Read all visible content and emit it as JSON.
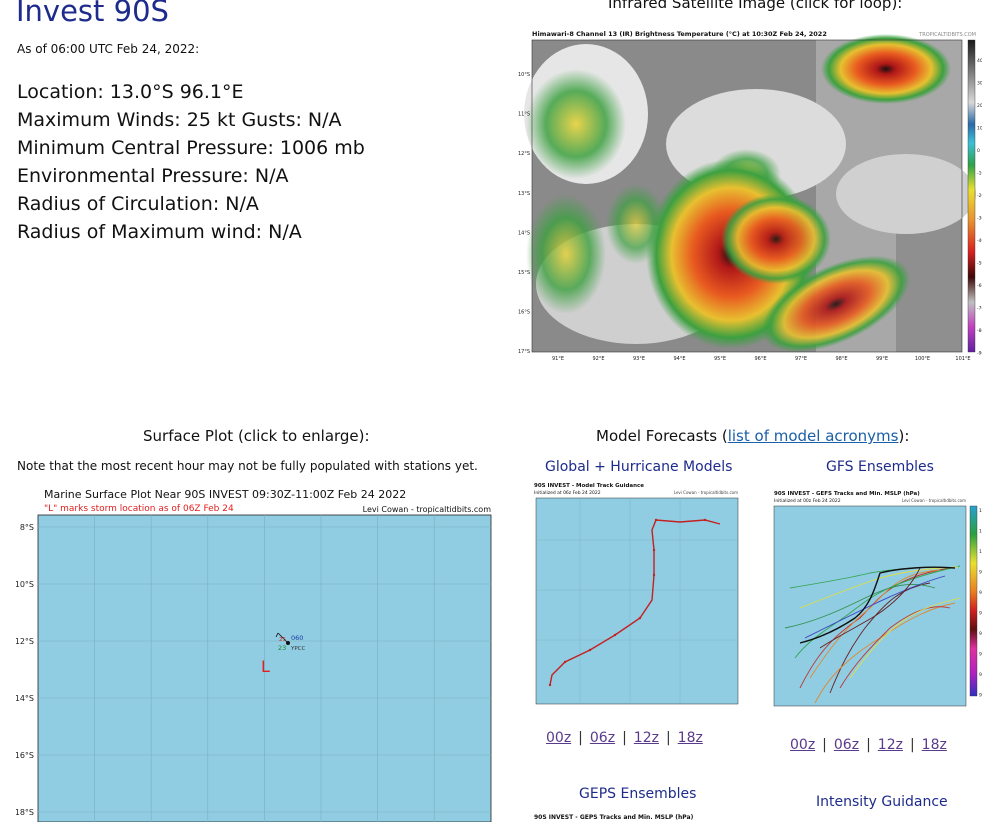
{
  "header": {
    "title": "Invest 90S",
    "as_of": "As of 06:00 UTC Feb 24, 2022:"
  },
  "stats": {
    "location": "Location: 13.0°S 96.1°E",
    "max_winds": "Maximum Winds: 25 kt  Gusts: N/A",
    "min_pressure": "Minimum Central Pressure: 1006 mb",
    "env_pressure": "Environmental Pressure: N/A",
    "radius_circ": "Radius of Circulation: N/A",
    "radius_max_wind": "Radius of Maximum wind: N/A"
  },
  "ir": {
    "section_title": "Infrared Satellite Image (click for loop):",
    "image_title": "Himawari-8 Channel 13 (IR) Brightness Temperature (°C) at 10:30Z Feb 24, 2022",
    "credit": "TROPICALTIDBITS.COM",
    "lat_labels": [
      "10°S",
      "11°S",
      "12°S",
      "13°S",
      "14°S",
      "15°S",
      "16°S",
      "17°S"
    ],
    "lon_labels": [
      "91°E",
      "92°E",
      "93°E",
      "94°E",
      "95°E",
      "96°E",
      "97°E",
      "98°E",
      "99°E",
      "100°E",
      "101°E"
    ],
    "scale_labels": [
      "40",
      "30",
      "20",
      "10",
      "0",
      "-10",
      "-20",
      "-30",
      "-40",
      "-50",
      "-60",
      "-70",
      "-80",
      "-90"
    ]
  },
  "surface": {
    "section_title": "Surface Plot (click to enlarge):",
    "note": "Note that the most recent hour may not be fully populated with stations yet.",
    "plot_title": "Marine Surface Plot Near 90S INVEST 09:30Z-11:00Z Feb 24 2022",
    "storm_note": "\"L\" marks storm location as of 06Z Feb 24",
    "credit": "Levi Cowan - tropicaltidbits.com",
    "lat_labels": [
      "8°S",
      "10°S",
      "12°S",
      "14°S",
      "16°S",
      "18°S"
    ],
    "station": {
      "pressure": "060",
      "temp": "23",
      "id": "YPCC",
      "dew": "25"
    },
    "storm_marker": "L"
  },
  "models": {
    "section_prefix": "Model Forecasts (",
    "acronyms_link": "list of model acronyms",
    "section_suffix": "):",
    "global": {
      "heading": "Global + Hurricane Models",
      "plot_title": "90S INVEST - Model Track Guidance",
      "plot_sub": "Initialized at 06z Feb 24 2022",
      "credit": "Levi Cowan - tropicaltidbits.com",
      "runs": [
        "00z",
        "06z",
        "12z",
        "18z"
      ]
    },
    "gfs": {
      "heading": "GFS Ensembles",
      "plot_title": "90S INVEST - GEFS Tracks and Min. MSLP (hPa)",
      "plot_sub": "Initialized at 00z Feb 24 2022",
      "credit": "Levi Cowan - tropicaltidbits.com",
      "scale_labels": [
        "1010",
        "1005",
        "1000",
        "990",
        "980",
        "970",
        "960",
        "950",
        "940",
        "930"
      ],
      "runs": [
        "00z",
        "06z",
        "12z",
        "18z"
      ]
    },
    "geps": {
      "heading": "GEPS Ensembles",
      "plot_title": "90S INVEST - GEPS Tracks and Min. MSLP (hPa)"
    },
    "intensity": {
      "heading": "Intensity Guidance"
    }
  },
  "colors": {
    "title_blue": "#1d2b8c",
    "ocean": "#90cde2",
    "link": "#1a5fa8",
    "visited_link": "#5a3a8a",
    "storm_red": "#e02020"
  }
}
